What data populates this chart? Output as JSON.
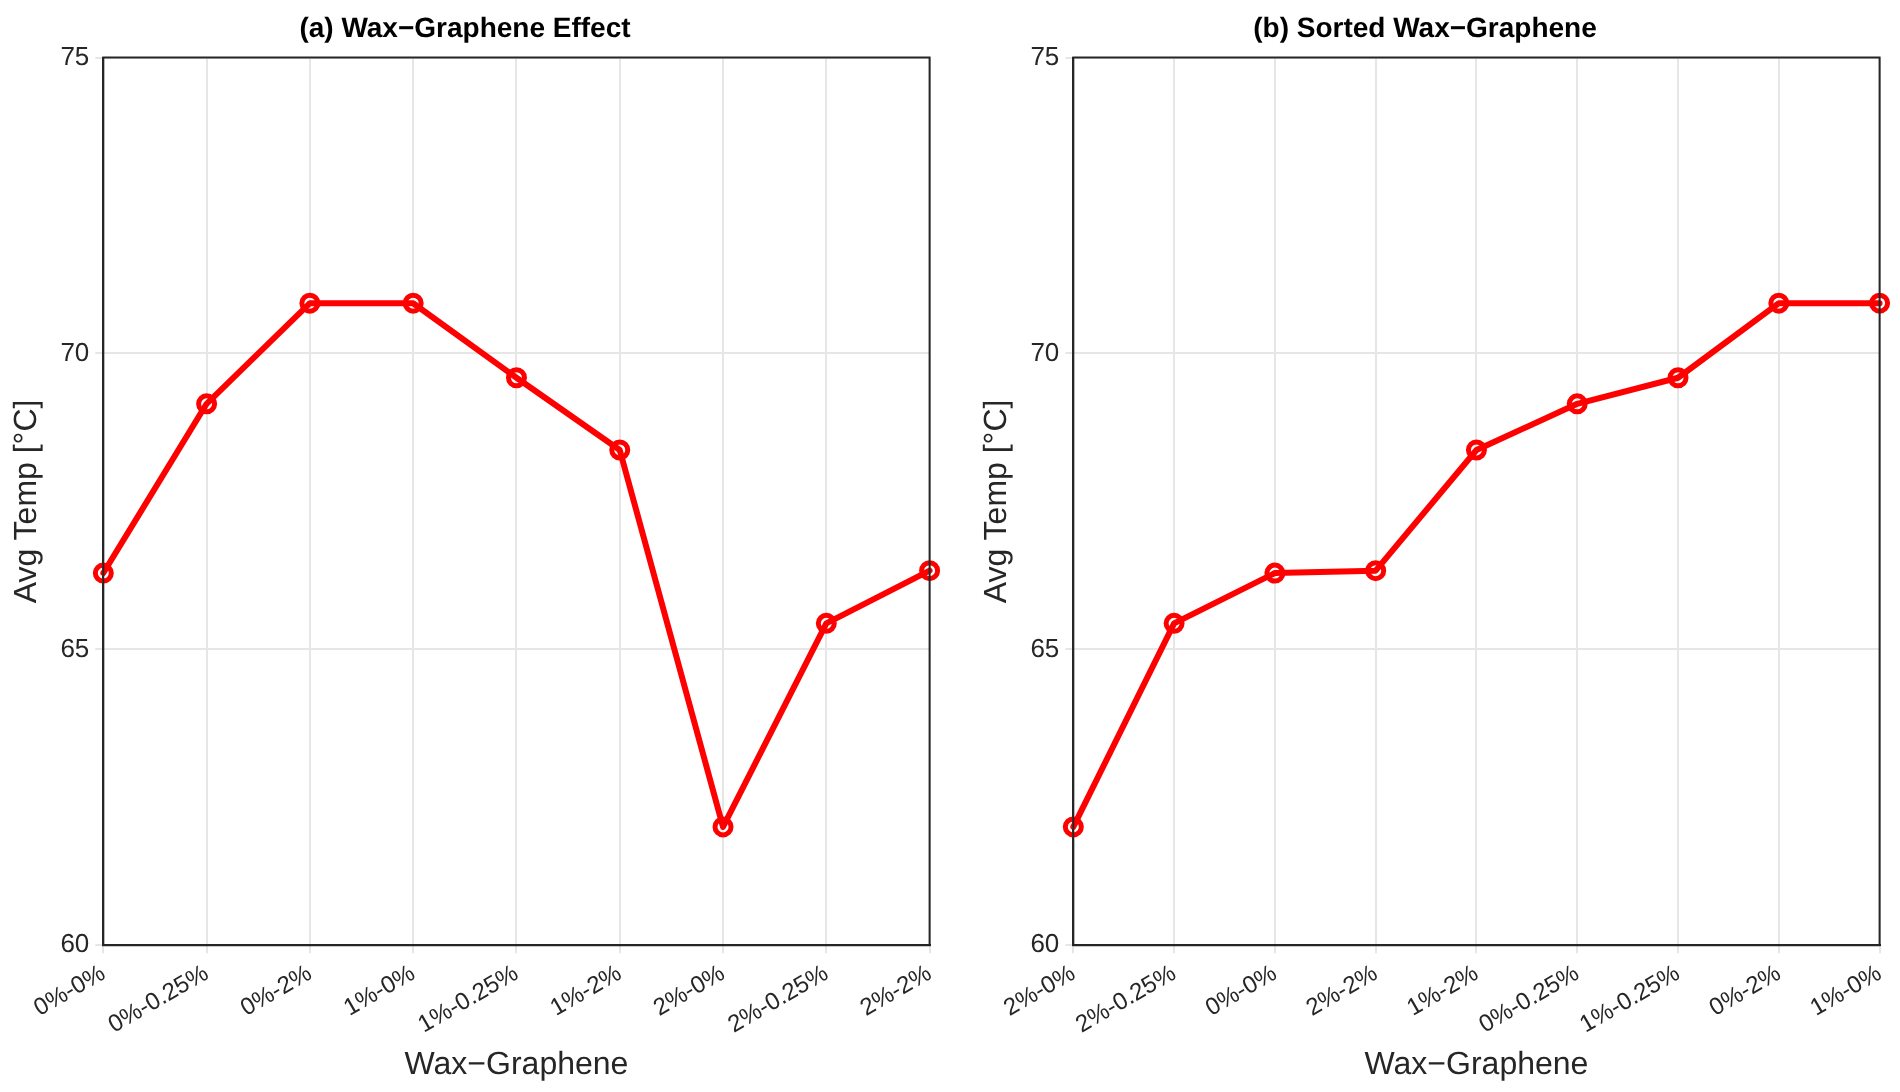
{
  "chart_data": [
    {
      "type": "line",
      "title": "(a) Wax−Graphene Effect",
      "xlabel": "Wax−Graphene",
      "ylabel": "Avg Temp [°C]",
      "categories": [
        "0%-0%",
        "0%-0.25%",
        "0%-2%",
        "1%-0%",
        "1%-0.25%",
        "1%-2%",
        "2%-0%",
        "2%-0.25%",
        "2%-2%"
      ],
      "series": [
        {
          "color": "#ff0000",
          "values": [
            66.29,
            69.15,
            70.85,
            70.85,
            69.59,
            68.37,
            62.0,
            65.44,
            66.33
          ]
        }
      ],
      "ylim": [
        60,
        75
      ],
      "yticks": [
        60,
        65,
        70,
        75
      ],
      "grid": true,
      "marker": "circle",
      "line_style": "solid"
    },
    {
      "type": "line",
      "title": "(b) Sorted Wax−Graphene",
      "xlabel": "Wax−Graphene",
      "ylabel": "Avg Temp [°C]",
      "categories": [
        "2%-0%",
        "2%-0.25%",
        "0%-0%",
        "2%-2%",
        "1%-2%",
        "0%-0.25%",
        "1%-0.25%",
        "0%-2%",
        "1%-0%"
      ],
      "series": [
        {
          "color": "#ff0000",
          "values": [
            62.0,
            65.44,
            66.29,
            66.33,
            68.37,
            69.15,
            69.59,
            70.85,
            70.85
          ]
        }
      ],
      "ylim": [
        60,
        75
      ],
      "yticks": [
        60,
        65,
        70,
        75
      ],
      "grid": true,
      "marker": "circle",
      "line_style": "solid"
    }
  ]
}
